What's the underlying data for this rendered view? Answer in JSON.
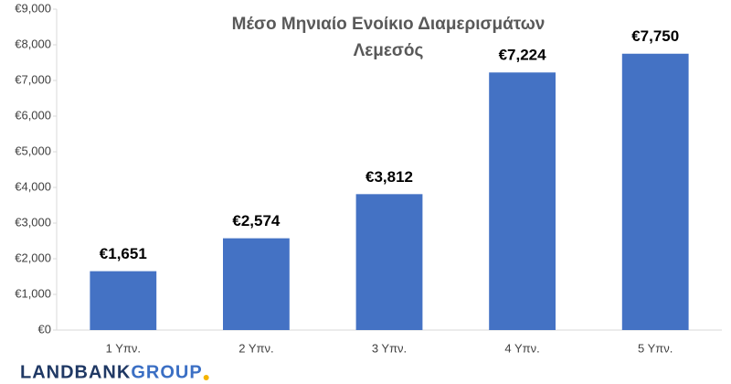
{
  "chart_data": {
    "type": "bar",
    "title": [
      "Μέσο Μηνιαίο Ενοίκιο Διαμερισμάτων",
      "Λεμεσός"
    ],
    "categories": [
      "1 Υπν.",
      "2 Υπν.",
      "3 Υπν.",
      "4 Υπν.",
      "5 Υπν."
    ],
    "values": [
      1651,
      2574,
      3812,
      7224,
      7750
    ],
    "value_labels": [
      "€1,651",
      "€2,574",
      "€3,812",
      "€7,224",
      "€7,750"
    ],
    "color": "#4472c4",
    "ylim": [
      0,
      9000
    ],
    "yticks": [
      {
        "value": 0,
        "label": "€0"
      },
      {
        "value": 1000,
        "label": "€1,000"
      },
      {
        "value": 2000,
        "label": "€2,000"
      },
      {
        "value": 3000,
        "label": "€3,000"
      },
      {
        "value": 4000,
        "label": "€4,000"
      },
      {
        "value": 5000,
        "label": "€5,000"
      },
      {
        "value": 6000,
        "label": "€6,000"
      },
      {
        "value": 7000,
        "label": "€7,000"
      },
      {
        "value": 8000,
        "label": "€8,000"
      },
      {
        "value": 9000,
        "label": "€9,000"
      }
    ],
    "grid": false
  },
  "logo": {
    "first": "LANDBANK",
    "second": "GROUP"
  }
}
